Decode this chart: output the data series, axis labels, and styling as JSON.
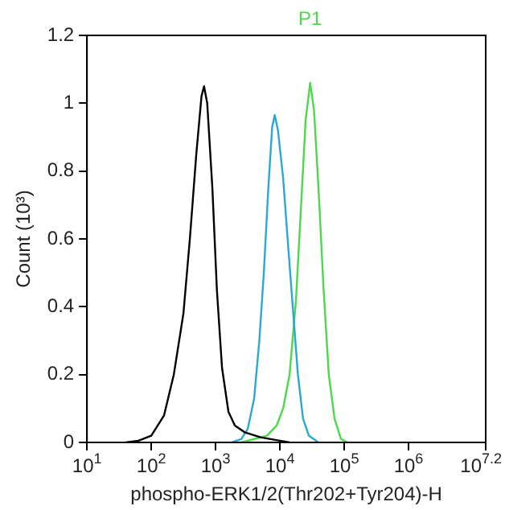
{
  "chart_data": {
    "type": "line",
    "xlabel": "phospho-ERK1/2(Thr202+Tyr204)-H",
    "ylabel": "Count (10³)",
    "log": "x",
    "xlim": [
      10,
      15848932
    ],
    "xticks": [
      {
        "value": 10,
        "label": "10$^{1}$"
      },
      {
        "value": 100,
        "label": "10$^{2}$"
      },
      {
        "value": 1000,
        "label": "10$^{3}$"
      },
      {
        "value": 10000,
        "label": "10$^{4}$"
      },
      {
        "value": 100000,
        "label": "10$^{5}$"
      },
      {
        "value": 1000000,
        "label": "10$^{6}$"
      },
      {
        "value": 15848932,
        "label": "10$^{7.2}$"
      }
    ],
    "ylim": [
      0,
      1.2
    ],
    "yticks": [
      0,
      0.2,
      0.4,
      0.6,
      0.8,
      1,
      1.2
    ],
    "grid": false,
    "legend": false,
    "marker": "none",
    "line_style": "solid",
    "series": [
      {
        "color": "#000000",
        "x": [
          40,
          63,
          100,
          158,
          224,
          316,
          398,
          501,
          603,
          661,
          741,
          891,
          1047,
          1259,
          1585,
          1995,
          2818,
          5012,
          10000,
          14125
        ],
        "values": [
          0,
          0.005,
          0.02,
          0.08,
          0.2,
          0.38,
          0.6,
          0.85,
          1.02,
          1.05,
          1.0,
          0.75,
          0.45,
          0.22,
          0.09,
          0.05,
          0.03,
          0.015,
          0.005,
          0
        ]
      },
      {
        "color": "#29a8d6",
        "x": [
          1778,
          2512,
          3162,
          3981,
          4786,
          5623,
          6607,
          7586,
          8318,
          9333,
          11220,
          13183,
          15849,
          19055,
          22909,
          28184,
          39811
        ],
        "values": [
          0,
          0.01,
          0.04,
          0.13,
          0.3,
          0.5,
          0.75,
          0.93,
          0.965,
          0.92,
          0.78,
          0.6,
          0.4,
          0.2,
          0.07,
          0.02,
          0
        ]
      },
      {
        "name": "P1",
        "color": "#4cd94c",
        "x": [
          2512,
          3981,
          6310,
          8913,
          11220,
          14125,
          17783,
          21380,
          25119,
          29512,
          33884,
          39811,
          47863,
          57544,
          70795,
          89125,
          112202
        ],
        "values": [
          0,
          0.01,
          0.02,
          0.05,
          0.1,
          0.2,
          0.42,
          0.7,
          0.95,
          1.06,
          0.98,
          0.75,
          0.45,
          0.2,
          0.07,
          0.01,
          0
        ]
      }
    ]
  }
}
